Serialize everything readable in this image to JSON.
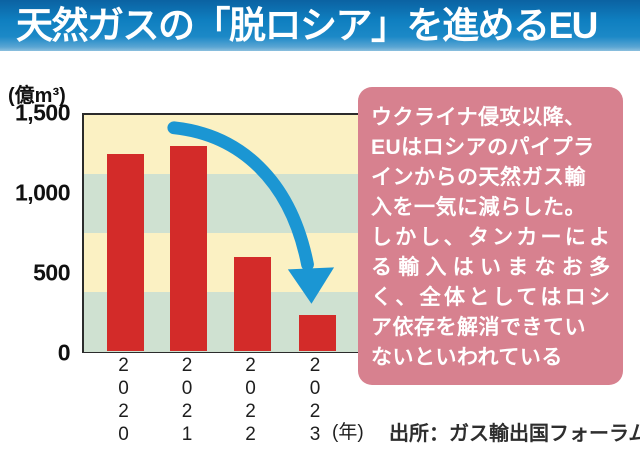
{
  "title": "天然ガスの「脱ロシア」を進めるEU",
  "source": "出所：ガス輸出国フォーラム",
  "chart_data": {
    "type": "bar",
    "ylabel": "(億m³)",
    "categories": [
      "2020",
      "2021",
      "2022",
      "2023"
    ],
    "values": [
      1250,
      1300,
      600,
      230
    ],
    "ylim": [
      0,
      1500
    ],
    "yticks": [
      {
        "label": "1,500",
        "value": 1500
      },
      {
        "label": "1,000",
        "value": 1000
      },
      {
        "label": "500",
        "value": 500
      },
      {
        "label": "0",
        "value": 0
      }
    ],
    "x_axis_suffix": "(年)",
    "grid": false,
    "bar_color": "#d32b29",
    "band_colors": [
      "#fbf1c3",
      "#cfe1d1",
      "#fbf1c3",
      "#cfe1d1"
    ],
    "arrow_color": "#1b96d3",
    "border_color": "#2b2b2b"
  },
  "note": {
    "bg_color": "#d7818f",
    "text_color": "#ffffff",
    "text": "ウクライナ侵攻以降、EUはロシアのパイプラインからの天然ガス輸入を一気に減らした。しかし、タンカーによる輸入はいまなお多く、全体としてはロシア依存を解消できていないといわれている",
    "lines": [
      "ウクライナ侵攻以降、",
      "EUはロシアのパイプラ",
      "インからの天然ガス輸",
      "入を一気に減らした。",
      "しかし、タンカーによ",
      "る輸入はいまなお多",
      "く、全体としてはロシ",
      "ア依存を解消できてい",
      "ないといわれている"
    ],
    "justify_lines": [
      4,
      5,
      6
    ]
  }
}
